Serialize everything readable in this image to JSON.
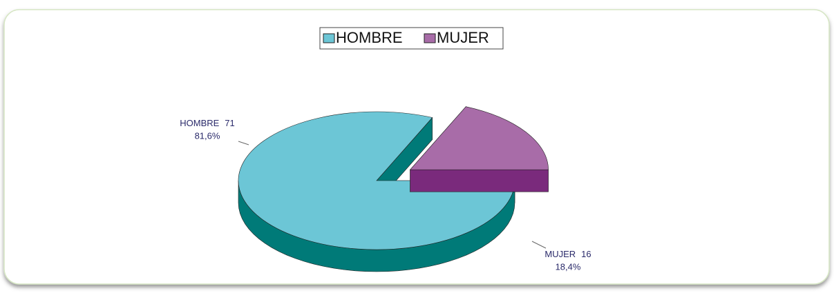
{
  "chart_data": {
    "type": "pie3d",
    "categories": [
      "HOMBRE",
      "MUJER"
    ],
    "values": [
      71,
      16
    ],
    "percentages": [
      81.6,
      18.4
    ],
    "percentage_labels": [
      "81,6%",
      "18,4%"
    ],
    "colors": [
      "#6cc6d6",
      "#a86ca8"
    ],
    "side_colors": [
      "#007a78",
      "#7a2a7c"
    ],
    "exploded": [
      false,
      true
    ],
    "legend": "top"
  }
}
